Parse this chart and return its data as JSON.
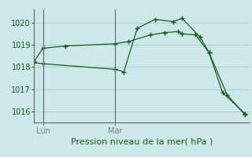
{
  "title": "Pression niveau de la mer( hPa )",
  "bg_color": "#cce8e8",
  "line_color": "#1a5c1a",
  "grid_color": "#aad0d0",
  "ylim": [
    1015.5,
    1020.6
  ],
  "yticks": [
    1016,
    1017,
    1018,
    1019,
    1020
  ],
  "xlim": [
    0,
    24
  ],
  "lun_x": 1.0,
  "mar_x": 9.0,
  "series1_x": [
    0.0,
    1.0,
    3.5,
    9.0,
    10.5,
    13.0,
    14.5,
    16.0,
    16.5,
    18.0,
    19.5,
    21.0,
    23.5
  ],
  "series1_y": [
    1018.25,
    1018.85,
    1018.95,
    1019.05,
    1019.15,
    1019.45,
    1019.55,
    1019.6,
    1019.5,
    1019.45,
    1018.65,
    1016.85,
    1015.9
  ],
  "series2_x": [
    0.0,
    1.0,
    9.0,
    10.0,
    11.5,
    13.5,
    15.5,
    16.5,
    18.5,
    19.5,
    21.5,
    23.5
  ],
  "series2_y": [
    1018.2,
    1018.15,
    1017.9,
    1017.78,
    1019.75,
    1020.15,
    1020.05,
    1020.2,
    1019.35,
    1018.65,
    1016.75,
    1015.85
  ],
  "tick_fontsize": 7,
  "label_fontsize": 8
}
